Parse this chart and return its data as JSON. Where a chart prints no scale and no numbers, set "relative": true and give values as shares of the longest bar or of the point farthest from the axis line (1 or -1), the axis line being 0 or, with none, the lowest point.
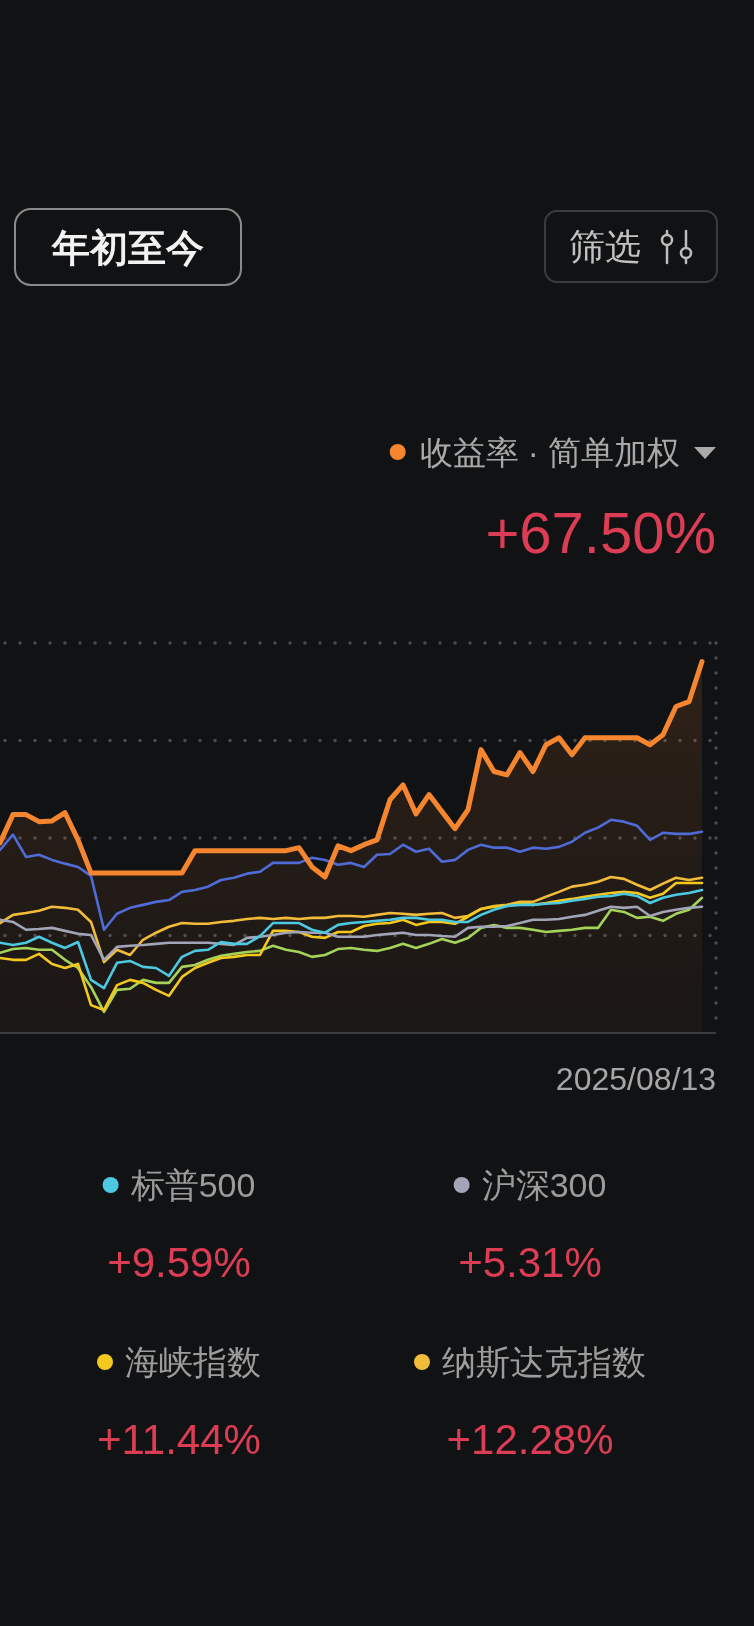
{
  "chart_data": {
    "type": "line",
    "relative": true,
    "title": "收益率 · 简单加权",
    "subtitle": "+67.50%",
    "annotations": [
      "年初至今",
      "筛选",
      "2025/08/13",
      "+9.59%",
      "+5.31%",
      "+11.44%",
      "+12.28%"
    ],
    "grid": "y",
    "legend": "bottom",
    "categories": [
      null,
      null,
      null,
      null,
      null,
      null,
      null,
      null,
      null,
      null,
      null,
      null,
      null,
      null,
      null,
      null,
      null,
      null,
      null,
      null,
      null,
      null,
      null,
      null,
      null,
      null,
      null,
      null,
      null,
      null,
      null,
      null,
      null,
      null,
      null,
      null,
      null,
      null,
      null,
      null,
      null,
      null,
      null,
      null,
      null,
      null,
      null,
      null,
      null,
      null,
      null,
      null,
      null,
      null,
      null
    ],
    "series": [
      {
        "type": "area",
        "color": "#f5862f",
        "values": [
          0.512,
          0.588,
          0.588,
          0.569,
          0.571,
          0.593,
          0.52,
          0.431,
          0.431,
          0.431,
          0.431,
          0.431,
          0.431,
          0.431,
          0.431,
          0.491,
          0.491,
          0.491,
          0.491,
          0.491,
          0.491,
          0.491,
          0.491,
          0.499,
          0.447,
          0.42,
          0.504,
          0.491,
          0.507,
          0.52,
          0.628,
          0.668,
          0.59,
          0.642,
          0.596,
          0.55,
          0.601,
          0.763,
          0.704,
          0.695,
          0.755,
          0.704,
          0.776,
          0.795,
          0.749,
          0.795,
          0.795,
          0.795,
          0.795,
          0.795,
          0.776,
          0.803,
          0.879,
          0.892,
          1
        ]
      },
      {
        "color": "#4f6bd6",
        "values": [
          0.493,
          0.534,
          0.474,
          0.48,
          0.466,
          0.456,
          0.447,
          0.423,
          0.278,
          0.321,
          0.337,
          0.345,
          0.353,
          0.358,
          0.38,
          0.385,
          0.394,
          0.412,
          0.418,
          0.429,
          0.434,
          0.458,
          0.458,
          0.458,
          0.472,
          0.466,
          0.453,
          0.458,
          0.447,
          0.48,
          0.482,
          0.507,
          0.488,
          0.496,
          0.461,
          0.466,
          0.493,
          0.507,
          0.499,
          0.499,
          0.488,
          0.499,
          0.496,
          0.501,
          0.515,
          0.539,
          0.553,
          0.574,
          0.569,
          0.558,
          0.52,
          0.539,
          0.536,
          0.536,
          0.542
        ]
      },
      {
        "name": "标普500",
        "color": "#4cc8e0",
        "values": [
          0.243,
          0.237,
          0.243,
          0.259,
          0.243,
          0.229,
          0.245,
          0.143,
          0.121,
          0.189,
          0.194,
          0.178,
          0.175,
          0.154,
          0.205,
          0.221,
          0.224,
          0.245,
          0.24,
          0.24,
          0.261,
          0.296,
          0.296,
          0.296,
          0.278,
          0.27,
          0.291,
          0.296,
          0.299,
          0.302,
          0.305,
          0.31,
          0.31,
          0.305,
          0.305,
          0.299,
          0.299,
          0.318,
          0.332,
          0.342,
          0.345,
          0.345,
          0.348,
          0.35,
          0.356,
          0.361,
          0.367,
          0.369,
          0.375,
          0.369,
          0.35,
          0.364,
          0.372,
          0.377,
          0.385
        ]
      },
      {
        "name": "沪深300",
        "color": "#a2a5b8",
        "values": [
          0.305,
          0.299,
          0.278,
          0.28,
          0.283,
          0.275,
          0.267,
          0.264,
          0.197,
          0.232,
          0.235,
          0.237,
          0.24,
          0.243,
          0.243,
          0.243,
          0.243,
          0.24,
          0.237,
          0.256,
          0.259,
          0.264,
          0.27,
          0.272,
          0.27,
          0.27,
          0.259,
          0.259,
          0.259,
          0.264,
          0.267,
          0.27,
          0.264,
          0.264,
          0.261,
          0.259,
          0.283,
          0.286,
          0.286,
          0.288,
          0.296,
          0.305,
          0.305,
          0.307,
          0.313,
          0.318,
          0.329,
          0.34,
          0.337,
          0.34,
          0.315,
          0.326,
          0.332,
          0.337,
          0.34
        ]
      },
      {
        "name": "海峡指数",
        "color": "#f5c81e",
        "values": [
          0.202,
          0.197,
          0.197,
          0.213,
          0.186,
          0.175,
          0.186,
          0.075,
          0.062,
          0.129,
          0.143,
          0.135,
          0.116,
          0.1,
          0.151,
          0.175,
          0.189,
          0.202,
          0.205,
          0.21,
          0.21,
          0.275,
          0.275,
          0.272,
          0.259,
          0.256,
          0.272,
          0.272,
          0.288,
          0.294,
          0.296,
          0.305,
          0.291,
          0.299,
          0.299,
          0.294,
          0.313,
          0.334,
          0.34,
          0.342,
          0.35,
          0.345,
          0.35,
          0.356,
          0.361,
          0.367,
          0.372,
          0.377,
          0.38,
          0.377,
          0.364,
          0.375,
          0.404,
          0.404,
          0.404
        ]
      },
      {
        "name": "纳斯达克指数",
        "color": "#f2bc3a",
        "values": [
          0.296,
          0.318,
          0.323,
          0.329,
          0.34,
          0.337,
          0.332,
          0.299,
          0.191,
          0.224,
          0.21,
          0.251,
          0.27,
          0.286,
          0.296,
          0.294,
          0.294,
          0.299,
          0.302,
          0.307,
          0.31,
          0.307,
          0.31,
          0.307,
          0.31,
          0.31,
          0.315,
          0.315,
          0.313,
          0.318,
          0.323,
          0.321,
          0.318,
          0.321,
          0.323,
          0.31,
          0.315,
          0.334,
          0.342,
          0.345,
          0.353,
          0.353,
          0.367,
          0.38,
          0.394,
          0.399,
          0.407,
          0.42,
          0.415,
          0.399,
          0.385,
          0.402,
          0.418,
          0.412,
          0.418
        ]
      },
      {
        "color": "#a5d35a",
        "values": [
          0.216,
          0.226,
          0.229,
          0.224,
          0.224,
          0.197,
          0.175,
          0.124,
          0.057,
          0.116,
          0.119,
          0.143,
          0.135,
          0.135,
          0.178,
          0.183,
          0.197,
          0.208,
          0.213,
          0.218,
          0.221,
          0.235,
          0.224,
          0.218,
          0.205,
          0.21,
          0.226,
          0.229,
          0.224,
          0.221,
          0.229,
          0.24,
          0.229,
          0.24,
          0.253,
          0.243,
          0.256,
          0.283,
          0.291,
          0.283,
          0.283,
          0.278,
          0.272,
          0.275,
          0.278,
          0.283,
          0.283,
          0.332,
          0.326,
          0.31,
          0.313,
          0.302,
          0.321,
          0.332,
          0.364
        ]
      }
    ]
  }
}
